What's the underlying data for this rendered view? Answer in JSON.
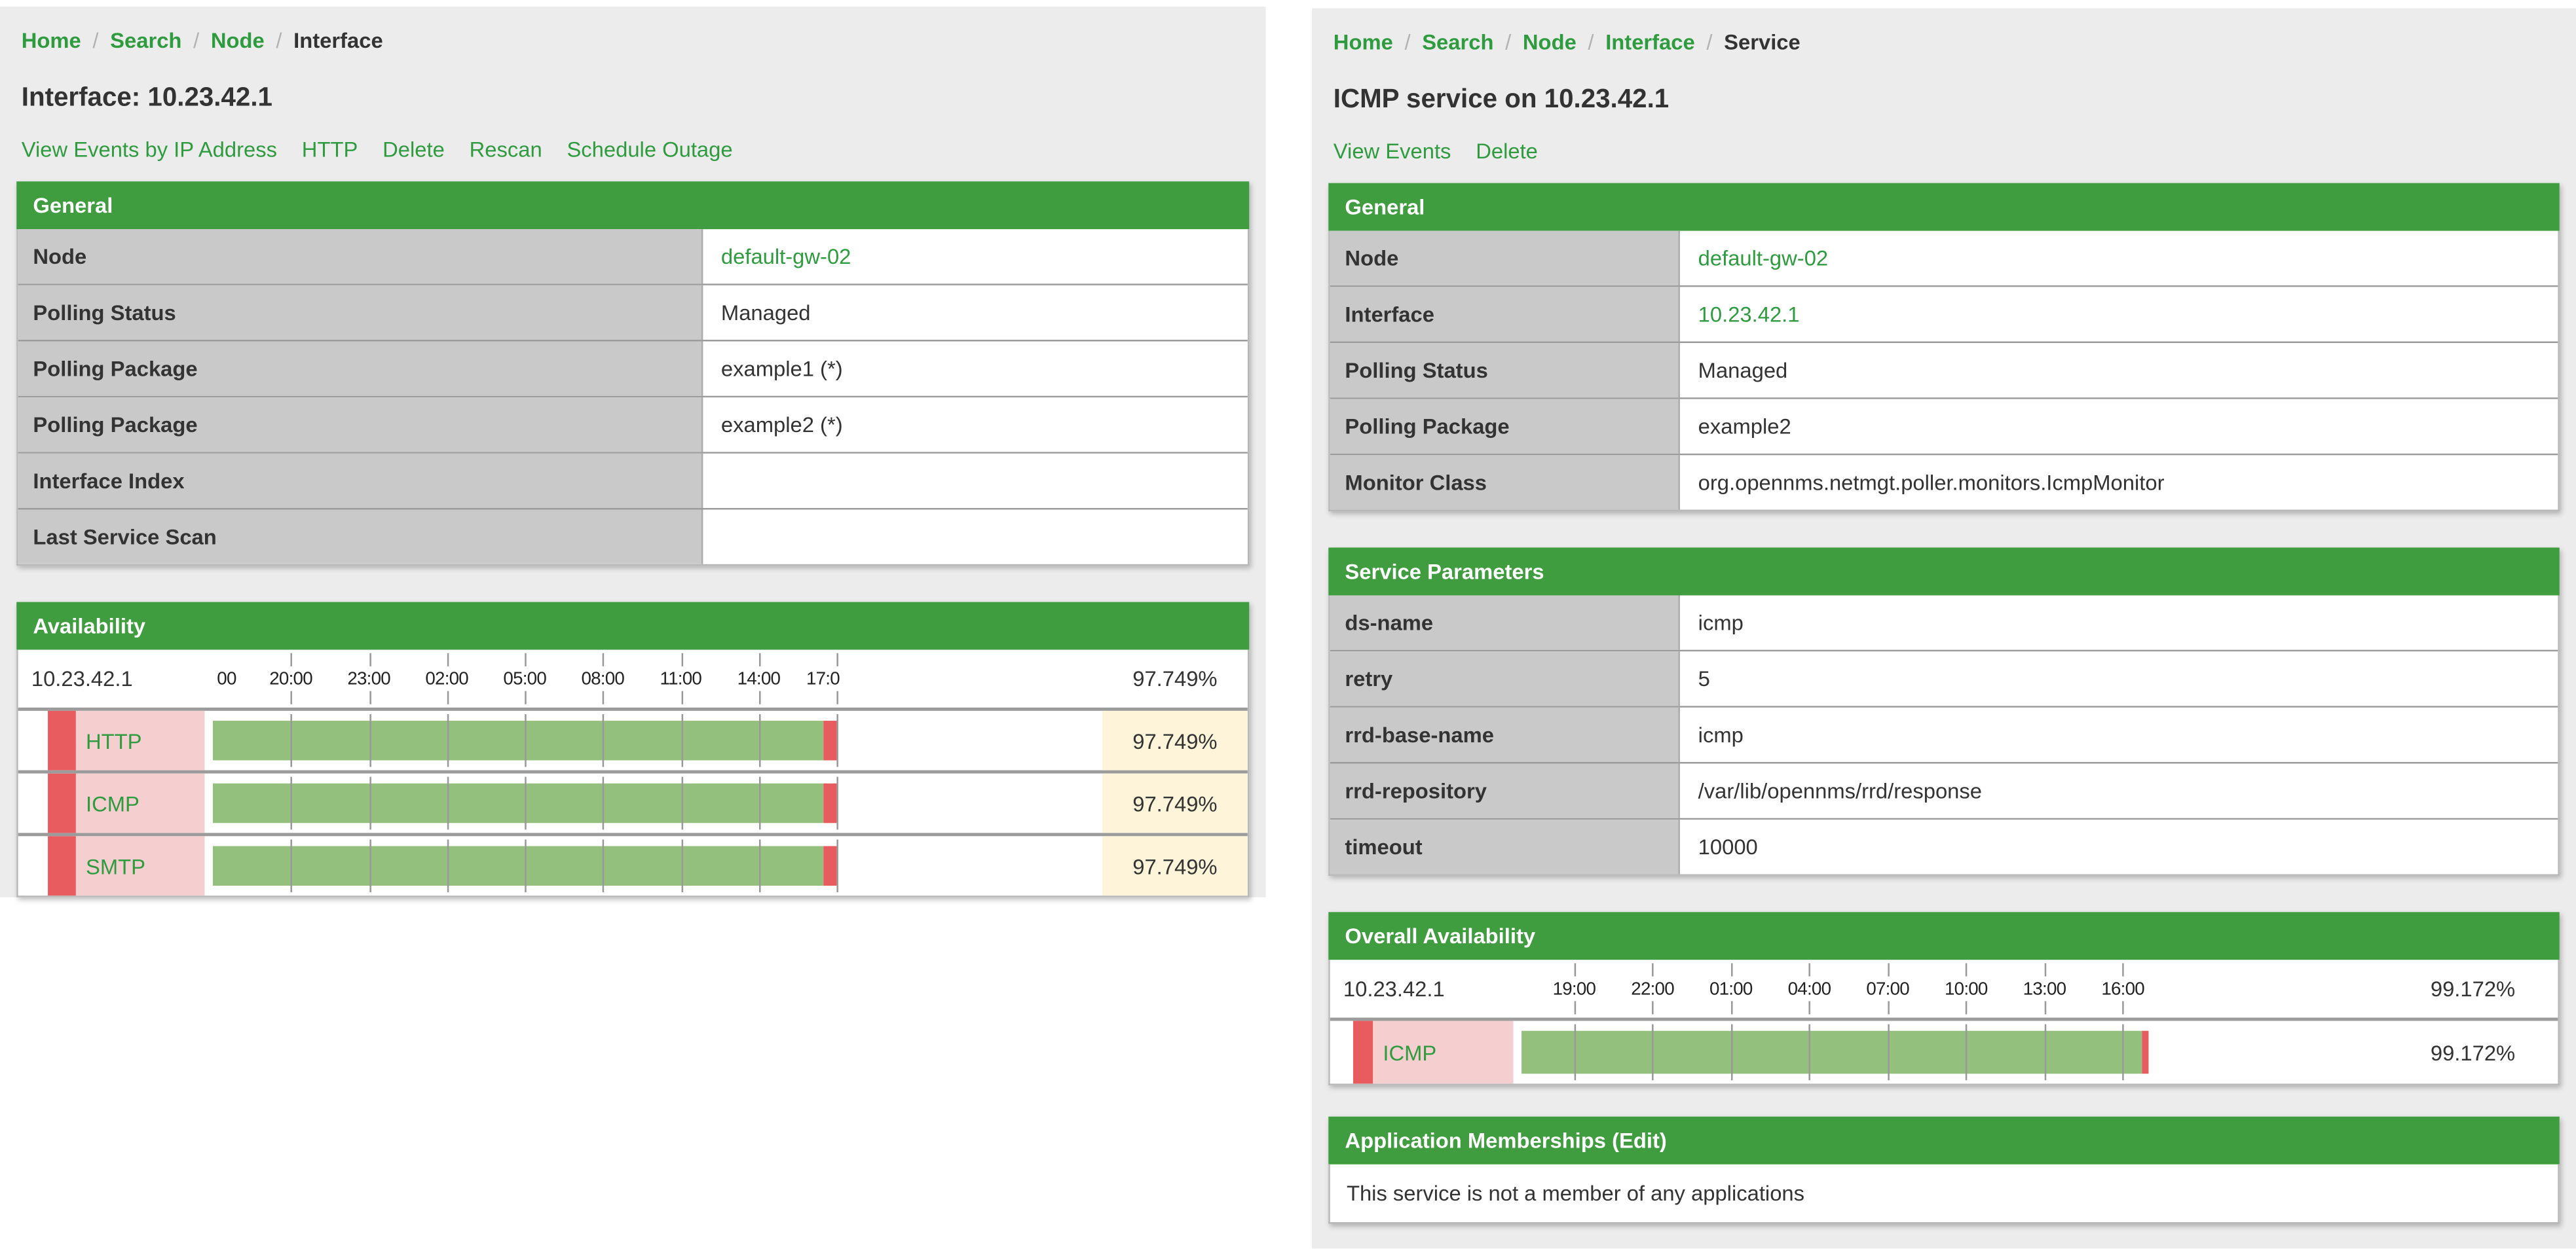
{
  "colors": {
    "page_bg": "#ececec",
    "panel_green": "#3f9c3f",
    "link_green": "#2f9b3f",
    "text": "#333333",
    "label_cell_gray": "#c9c9c9",
    "bar_green": "#94c07e",
    "down_red": "#e85b5e",
    "service_pink": "#f5cfd0",
    "value_yellow": "#fdf4d9"
  },
  "left_page": {
    "breadcrumb": {
      "separator": "/",
      "items": [
        {
          "label": "Home",
          "link": true
        },
        {
          "label": "Search",
          "link": true
        },
        {
          "label": "Node",
          "link": true
        },
        {
          "label": "Interface",
          "link": false
        }
      ]
    },
    "title": "Interface: 10.23.42.1",
    "actions": [
      "View Events by IP Address",
      "HTTP",
      "Delete",
      "Rescan",
      "Schedule Outage"
    ],
    "general": {
      "header": "General",
      "rows": [
        {
          "label": "Node",
          "value": "default-gw-02",
          "link": true
        },
        {
          "label": "Polling Status",
          "value": "Managed",
          "link": false
        },
        {
          "label": "Polling Package",
          "value": "example1 (*)",
          "link": false
        },
        {
          "label": "Polling Package",
          "value": "example2 (*)",
          "link": false
        },
        {
          "label": "Interface Index",
          "value": "",
          "link": false
        },
        {
          "label": "Last Service Scan",
          "value": "",
          "link": false
        }
      ]
    },
    "availability": {
      "header": "Availability",
      "ip": "10.23.42.1",
      "summary_value": "97.749%",
      "ticks": [
        {
          "label": "00",
          "pos": 2.2
        },
        {
          "label": "20:00",
          "pos": 12.5
        },
        {
          "label": "23:00",
          "pos": 25
        },
        {
          "label": "02:00",
          "pos": 37.5
        },
        {
          "label": "05:00",
          "pos": 50
        },
        {
          "label": "08:00",
          "pos": 62.5
        },
        {
          "label": "11:00",
          "pos": 75
        },
        {
          "label": "14:00",
          "pos": 87.5
        },
        {
          "label": "17:0",
          "pos": 97.8
        }
      ],
      "gridlines": [
        12.5,
        25,
        37.5,
        50,
        62.5,
        75,
        87.5,
        100
      ],
      "bar": {
        "green_pct": 98,
        "red_pct": 2
      },
      "services": [
        {
          "name": "HTTP",
          "value": "97.749%"
        },
        {
          "name": "ICMP",
          "value": "97.749%"
        },
        {
          "name": "SMTP",
          "value": "97.749%"
        }
      ]
    }
  },
  "right_page": {
    "breadcrumb": {
      "separator": "/",
      "items": [
        {
          "label": "Home",
          "link": true
        },
        {
          "label": "Search",
          "link": true
        },
        {
          "label": "Node",
          "link": true
        },
        {
          "label": "Interface",
          "link": true
        },
        {
          "label": "Service",
          "link": false
        }
      ]
    },
    "title": "ICMP service on 10.23.42.1",
    "actions": [
      "View Events",
      "Delete"
    ],
    "general": {
      "header": "General",
      "rows": [
        {
          "label": "Node",
          "value": "default-gw-02",
          "link": true
        },
        {
          "label": "Interface",
          "value": "10.23.42.1",
          "link": true
        },
        {
          "label": "Polling Status",
          "value": "Managed",
          "link": false
        },
        {
          "label": "Polling Package",
          "value": "example2",
          "link": false
        },
        {
          "label": "Monitor Class",
          "value": "org.opennms.netmgt.poller.monitors.IcmpMonitor",
          "link": false
        }
      ]
    },
    "service_parameters": {
      "header": "Service Parameters",
      "rows": [
        {
          "label": "ds-name",
          "value": "icmp",
          "link": false
        },
        {
          "label": "retry",
          "value": "5",
          "link": false
        },
        {
          "label": "rrd-base-name",
          "value": "icmp",
          "link": false
        },
        {
          "label": "rrd-repository",
          "value": "/var/lib/opennms/rrd/response",
          "link": false
        },
        {
          "label": "timeout",
          "value": "10000",
          "link": false
        }
      ]
    },
    "availability": {
      "header": "Overall Availability",
      "ip": "10.23.42.1",
      "summary_value": "99.172%",
      "ticks": [
        {
          "label": "19:00",
          "pos": 8.4
        },
        {
          "label": "22:00",
          "pos": 20.9
        },
        {
          "label": "01:00",
          "pos": 33.4
        },
        {
          "label": "04:00",
          "pos": 45.9
        },
        {
          "label": "07:00",
          "pos": 58.4
        },
        {
          "label": "10:00",
          "pos": 70.9
        },
        {
          "label": "13:00",
          "pos": 83.4
        },
        {
          "label": "16:00",
          "pos": 95.9
        }
      ],
      "gridlines": [
        8.4,
        20.9,
        33.4,
        45.9,
        58.4,
        70.9,
        83.4,
        95.9
      ],
      "bar": {
        "green_pct": 99,
        "red_pct": 1
      },
      "services": [
        {
          "name": "ICMP",
          "value": "99.172%"
        }
      ]
    },
    "applications": {
      "header": "Application Memberships",
      "edit_link": "(Edit)",
      "empty_text": "This service is not a member of any applications"
    }
  }
}
